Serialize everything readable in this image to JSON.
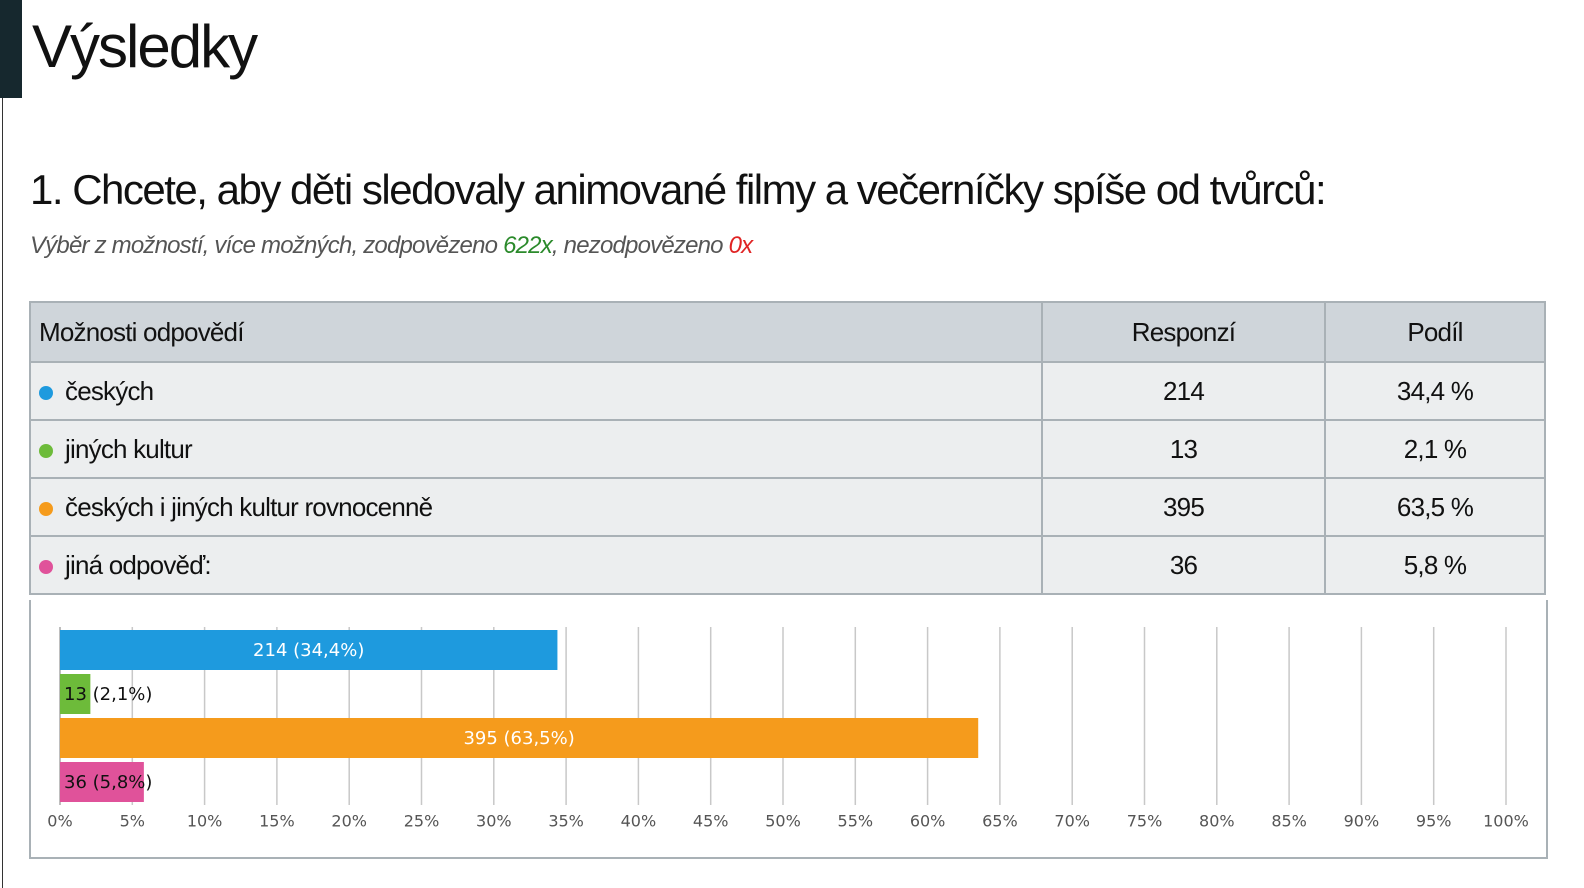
{
  "header": {
    "title": "Výsledky"
  },
  "question": {
    "title": "1. Chcete, aby děti sledovaly animované filmy a večerníčky spíše od tvůrců:",
    "subtitle_parts": [
      "Výběr z možností, více možných, zodpovězeno",
      "622x",
      ", nezodpovězeno",
      "0x"
    ]
  },
  "table": {
    "headers": [
      "Možnosti odpovědí",
      "Responzí",
      "Podíl"
    ],
    "rows": [
      [
        "českých",
        "214",
        "34,4 %"
      ],
      [
        "jiných kultur",
        "13",
        "2,1 %"
      ],
      [
        "českých i jiných kultur rovnocenně",
        "395",
        "63,5 %"
      ],
      [
        "jiná odpověď:",
        "36",
        "5,8 %"
      ]
    ]
  },
  "chart_data": {
    "type": "hbar",
    "categories": [
      "českých",
      "jiných kultur",
      "českých i jiných kultur rovnocenně",
      "jiná odpověď:"
    ],
    "values": [
      34.4,
      2.1,
      63.5,
      5.8
    ],
    "value_labels": [
      "214 (34,4%)",
      "13 (2,1%)",
      "395 (63,5%)",
      "36 (5,8%)"
    ],
    "colors": [
      "#1e9ade",
      "#6dbb3a",
      "#f59b1c",
      "#e0529a"
    ],
    "xlim": [
      0,
      100
    ],
    "xticks": [
      {
        "value": 0,
        "label": "0%"
      },
      {
        "value": 5,
        "label": "5%"
      },
      {
        "value": 10,
        "label": "10%"
      },
      {
        "value": 15,
        "label": "15%"
      },
      {
        "value": 20,
        "label": "20%"
      },
      {
        "value": 25,
        "label": "25%"
      },
      {
        "value": 30,
        "label": "30%"
      },
      {
        "value": 35,
        "label": "35%"
      },
      {
        "value": 40,
        "label": "40%"
      },
      {
        "value": 45,
        "label": "45%"
      },
      {
        "value": 50,
        "label": "50%"
      },
      {
        "value": 55,
        "label": "55%"
      },
      {
        "value": 60,
        "label": "60%"
      },
      {
        "value": 65,
        "label": "65%"
      },
      {
        "value": 70,
        "label": "70%"
      },
      {
        "value": 75,
        "label": "75%"
      },
      {
        "value": 80,
        "label": "80%"
      },
      {
        "value": 85,
        "label": "85%"
      },
      {
        "value": 90,
        "label": "90%"
      },
      {
        "value": 95,
        "label": "95%"
      },
      {
        "value": 100,
        "label": "100%"
      }
    ],
    "grid": true
  }
}
